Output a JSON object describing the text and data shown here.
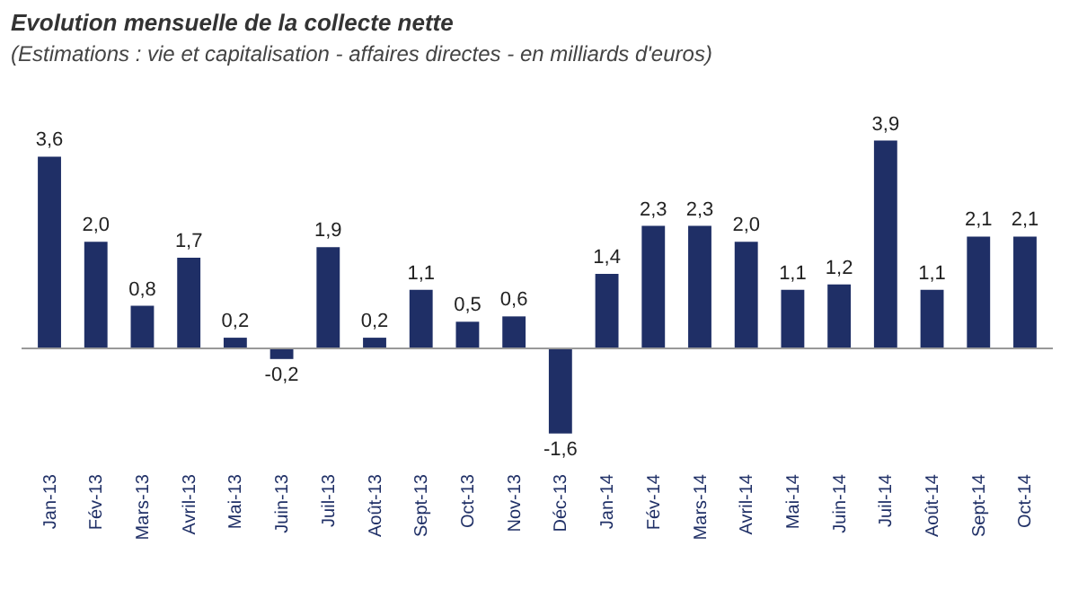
{
  "chart_data": {
    "type": "bar",
    "title": "Evolution mensuelle de la collecte nette",
    "subtitle": "(Estimations : vie et capitalisation - affaires directes - en milliards d'euros)",
    "categories": [
      "Jan-13",
      "Fév-13",
      "Mars-13",
      "Avril-13",
      "Mai-13",
      "Juin-13",
      "Juil-13",
      "Août-13",
      "Sept-13",
      "Oct-13",
      "Nov-13",
      "Déc-13",
      "Jan-14",
      "Fév-14",
      "Mars-14",
      "Avril-14",
      "Mai-14",
      "Juin-14",
      "Juil-14",
      "Août-14",
      "Sept-14",
      "Oct-14"
    ],
    "values": [
      3.6,
      2.0,
      0.8,
      1.7,
      0.2,
      -0.2,
      1.9,
      0.2,
      1.1,
      0.5,
      0.6,
      -1.6,
      1.4,
      2.3,
      2.3,
      2.0,
      1.1,
      1.2,
      3.9,
      1.1,
      2.1,
      2.1
    ],
    "value_labels": [
      "3,6",
      "2,0",
      "0,8",
      "1,7",
      "0,2",
      "-0,2",
      "1,9",
      "0,2",
      "1,1",
      "0,5",
      "0,6",
      "-1,6",
      "1,4",
      "2,3",
      "2,3",
      "2,0",
      "1,1",
      "1,2",
      "3,9",
      "1,1",
      "2,1",
      "2,1"
    ],
    "color": "#1f2f66"
  }
}
